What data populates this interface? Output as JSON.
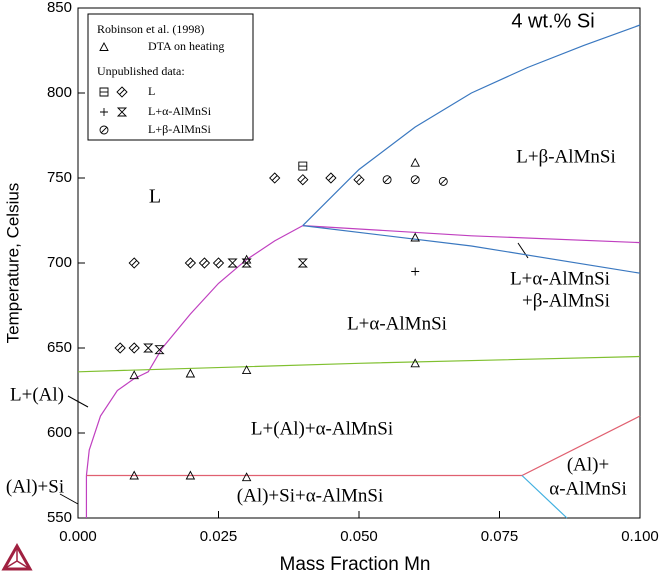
{
  "chart_data": {
    "type": "phase-diagram",
    "annotations": [
      "4 wt.% Si",
      "L",
      "L+β-AlMnSi",
      "L+α-AlMnSi",
      "+β-AlMnSi",
      "L+α-AlMnSi",
      "L+(Al)",
      "L+(Al)+α-AlMnSi",
      "(Al)+Si",
      "(Al)+Si+α-AlMnSi",
      "(Al)+",
      "α-AlMnSi"
    ],
    "x_label": "Mass Fraction Mn",
    "y_label": "Temperature, Celsius",
    "xlim": [
      0,
      0.1
    ],
    "xticks": [
      {
        "value": 0,
        "label": "0.000"
      },
      {
        "value": 0.025,
        "label": "0.025"
      },
      {
        "value": 0.05,
        "label": "0.050"
      },
      {
        "value": 0.075,
        "label": "0.075"
      },
      {
        "value": 0.1,
        "label": "0.100"
      }
    ],
    "ylim": [
      550,
      850
    ],
    "yticks": [
      550,
      600,
      650,
      700,
      750,
      800,
      850
    ],
    "legend_headings": [
      "Robinson et al. (1998)",
      "Unpublished data:"
    ],
    "series": [
      {
        "name": "DTA on heating",
        "markers": [
          "triangle",
          "triangle",
          "triangle",
          "triangle",
          "triangle",
          "triangle",
          "triangle",
          "triangle",
          "triangle",
          "triangle"
        ],
        "x": [
          0.01,
          0.02,
          0.03,
          0.06,
          0.03,
          0.06,
          0.06,
          0.01,
          0.02,
          0.03
        ],
        "values": [
          634,
          635,
          637,
          641,
          702,
          715,
          759,
          575,
          575,
          574
        ]
      },
      {
        "name": "L",
        "markers": [
          "square",
          "diamond",
          "diamond",
          "diamond",
          "diamond",
          "diamond",
          "diamond",
          "diamond",
          "diamond",
          "diamond",
          "diamond"
        ],
        "x": [
          0.04,
          0.0075,
          0.01,
          0.01,
          0.02,
          0.0225,
          0.025,
          0.035,
          0.04,
          0.045,
          0.05
        ],
        "values": [
          757,
          650,
          650,
          700,
          700,
          700,
          700,
          750,
          749,
          750,
          749
        ]
      },
      {
        "name": "L+α-AlMnSi",
        "markers": [
          "plus",
          "hourglass",
          "hourglass",
          "hourglass",
          "hourglass",
          "hourglass"
        ],
        "x": [
          0.06,
          0.0125,
          0.0145,
          0.0275,
          0.03,
          0.04
        ],
        "values": [
          695,
          650,
          649,
          700,
          700,
          700
        ]
      },
      {
        "name": "L+β-AlMnSi",
        "markers": [
          "circle",
          "circle",
          "circle"
        ],
        "x": [
          0.055,
          0.06,
          0.065
        ],
        "values": [
          749,
          749,
          748
        ]
      }
    ],
    "boundaries": [
      {
        "color": "#3a78c0",
        "x": [
          0.04,
          0.05,
          0.06,
          0.07,
          0.08,
          0.09,
          0.1
        ],
        "values": [
          722,
          755,
          780,
          800,
          815,
          828,
          840
        ]
      },
      {
        "color": "#c040c0",
        "x": [
          0.0015,
          0.002,
          0.004,
          0.007,
          0.01,
          0.0125,
          0.015,
          0.02,
          0.025,
          0.03,
          0.035,
          0.04
        ],
        "values": [
          575,
          590,
          610,
          625,
          632,
          636,
          650,
          670,
          688,
          702,
          713,
          722
        ]
      },
      {
        "color": "#c040c0",
        "x": [
          0.04,
          0.07,
          0.1
        ],
        "values": [
          722,
          716,
          712
        ]
      },
      {
        "color": "#3a78c0",
        "x": [
          0.04,
          0.07,
          0.1
        ],
        "values": [
          722,
          710,
          694
        ]
      },
      {
        "color": "#80c030",
        "x": [
          0,
          0.05,
          0.1
        ],
        "values": [
          636,
          641,
          645
        ]
      },
      {
        "color": "#e06070",
        "x": [
          0.0015,
          0.079,
          0.1
        ],
        "values": [
          575,
          575,
          610
        ]
      },
      {
        "color": "#40b0e0",
        "x": [
          0.079,
          0.087
        ],
        "values": [
          575,
          550
        ]
      },
      {
        "color": "#c040c0",
        "x": [
          0.0015,
          0.0015
        ],
        "values": [
          550,
          575
        ]
      }
    ]
  }
}
